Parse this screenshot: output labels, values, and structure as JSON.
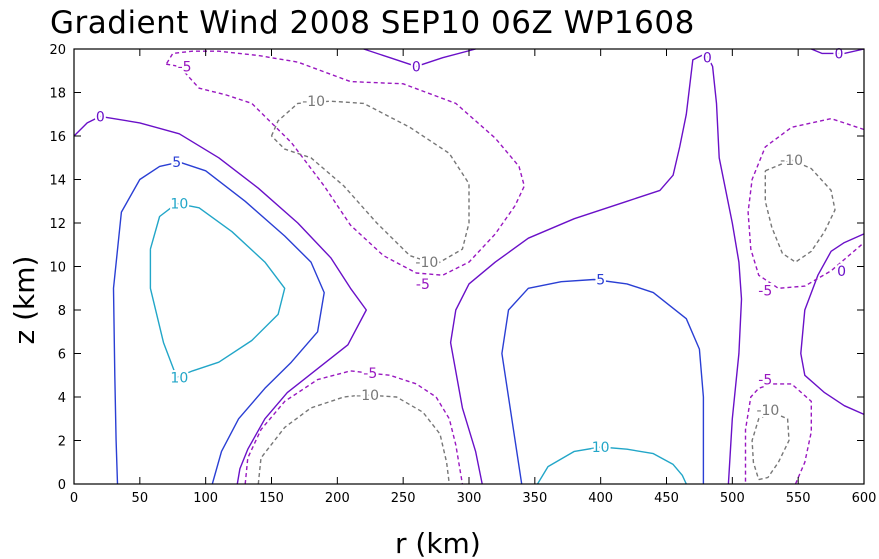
{
  "chart_data": {
    "type": "contour",
    "title": "Gradient Wind 2008 SEP10 06Z  WP1608",
    "xlabel": "r (km)",
    "ylabel": "z (km)",
    "xlim": [
      0,
      600
    ],
    "ylim": [
      0,
      20
    ],
    "xticks": [
      "0",
      "50",
      "100",
      "150",
      "200",
      "250",
      "300",
      "350",
      "400",
      "450",
      "500",
      "550",
      "600"
    ],
    "yticks": [
      "0",
      "2",
      "4",
      "6",
      "8",
      "10",
      "12",
      "14",
      "16",
      "18",
      "20"
    ],
    "colors": {
      "10": "#22a6c8",
      "5": "#2a3fd4",
      "0": "#6a10c8",
      "-5": "#9918c0",
      "-10": "#777777"
    },
    "contours": [
      {
        "level": 10,
        "label": "10",
        "dashed": false,
        "points": [
          [
            58,
            10.8
          ],
          [
            65,
            12.3
          ],
          [
            78,
            12.9
          ],
          [
            95,
            12.7
          ],
          [
            120,
            11.6
          ],
          [
            145,
            10.2
          ],
          [
            160,
            9.0
          ],
          [
            155,
            7.8
          ],
          [
            135,
            6.6
          ],
          [
            110,
            5.6
          ],
          [
            90,
            5.2
          ],
          [
            78,
            4.9
          ],
          [
            68,
            6.5
          ],
          [
            58,
            9.0
          ],
          [
            58,
            10.8
          ]
        ]
      },
      {
        "level": 5,
        "label": "5",
        "dashed": false,
        "points": [
          [
            33,
            0
          ],
          [
            32,
            2
          ],
          [
            31,
            5
          ],
          [
            30,
            9
          ],
          [
            36,
            12.5
          ],
          [
            50,
            14.0
          ],
          [
            65,
            14.6
          ],
          [
            80,
            14.8
          ],
          [
            100,
            14.4
          ],
          [
            130,
            13.0
          ],
          [
            160,
            11.4
          ],
          [
            180,
            10.2
          ],
          [
            190,
            8.8
          ],
          [
            185,
            7.0
          ],
          [
            165,
            5.6
          ],
          [
            145,
            4.4
          ],
          [
            125,
            3.0
          ],
          [
            112,
            1.5
          ],
          [
            105,
            0
          ]
        ]
      },
      {
        "level": 0,
        "label": "0",
        "dashed": false,
        "points": [
          [
            0,
            16.0
          ],
          [
            10,
            16.6
          ],
          [
            20,
            16.9
          ],
          [
            50,
            16.6
          ],
          [
            80,
            16.1
          ],
          [
            110,
            15.0
          ],
          [
            140,
            13.6
          ],
          [
            170,
            12.0
          ],
          [
            195,
            10.4
          ],
          [
            210,
            9.0
          ],
          [
            222,
            8.0
          ],
          [
            208,
            6.4
          ],
          [
            185,
            5.3
          ],
          [
            162,
            4.2
          ],
          [
            145,
            3.0
          ],
          [
            132,
            1.6
          ],
          [
            126,
            0.7
          ],
          [
            124,
            0
          ]
        ]
      },
      {
        "level": 0,
        "label": "0",
        "dashed": false,
        "points": [
          [
            310,
            0
          ],
          [
            305,
            1.5
          ],
          [
            295,
            3.5
          ],
          [
            286,
            6.5
          ],
          [
            290,
            8.0
          ],
          [
            300,
            9.2
          ],
          [
            320,
            10.2
          ],
          [
            345,
            11.3
          ],
          [
            380,
            12.2
          ],
          [
            420,
            13.0
          ],
          [
            445,
            13.5
          ],
          [
            455,
            14.2
          ],
          [
            460,
            15.5
          ],
          [
            465,
            17.0
          ],
          [
            470,
            19.5
          ],
          [
            480,
            19.8
          ],
          [
            485,
            19.2
          ],
          [
            488,
            17.5
          ],
          [
            490,
            15.0
          ],
          [
            500,
            12.0
          ],
          [
            505,
            10.2
          ],
          [
            507,
            8.5
          ],
          [
            505,
            6.0
          ],
          [
            500,
            3.0
          ],
          [
            498,
            1.0
          ],
          [
            497,
            0
          ]
        ]
      },
      {
        "level": 0,
        "label": "0",
        "dashed": false,
        "points": [
          [
            220,
            20
          ],
          [
            240,
            19.6
          ],
          [
            260,
            19.2
          ],
          [
            280,
            19.6
          ],
          [
            305,
            20
          ]
        ]
      },
      {
        "level": 0,
        "label": "0",
        "dashed": false,
        "points": [
          [
            560,
            20
          ],
          [
            568,
            19.8
          ],
          [
            585,
            19.8
          ],
          [
            600,
            20
          ]
        ]
      },
      {
        "level": 0,
        "label": "0",
        "dashed": false,
        "points": [
          [
            600,
            11.5
          ],
          [
            585,
            11.1
          ],
          [
            575,
            10.7
          ],
          [
            565,
            9.6
          ],
          [
            555,
            8.0
          ],
          [
            552,
            6.0
          ],
          [
            555,
            5.0
          ],
          [
            570,
            4.2
          ],
          [
            585,
            3.6
          ],
          [
            600,
            3.2
          ]
        ]
      },
      {
        "level": 5,
        "label": "5",
        "dashed": false,
        "points": [
          [
            340,
            0
          ],
          [
            335,
            2
          ],
          [
            330,
            4
          ],
          [
            325,
            6
          ],
          [
            330,
            8
          ],
          [
            345,
            9.0
          ],
          [
            370,
            9.3
          ],
          [
            395,
            9.4
          ],
          [
            420,
            9.2
          ],
          [
            440,
            8.8
          ],
          [
            465,
            7.6
          ],
          [
            475,
            6.2
          ],
          [
            478,
            4.0
          ],
          [
            478,
            2
          ],
          [
            478,
            0
          ]
        ]
      },
      {
        "level": 10,
        "label": "10",
        "dashed": false,
        "points": [
          [
            352,
            0
          ],
          [
            360,
            0.8
          ],
          [
            380,
            1.5
          ],
          [
            400,
            1.7
          ],
          [
            420,
            1.6
          ],
          [
            440,
            1.4
          ],
          [
            455,
            0.9
          ],
          [
            462,
            0.4
          ],
          [
            465,
            0
          ]
        ]
      },
      {
        "level": -5,
        "label": "-5",
        "dashed": true,
        "points": [
          [
            130,
            0
          ],
          [
            132,
            1.2
          ],
          [
            142,
            2.5
          ],
          [
            160,
            3.8
          ],
          [
            185,
            4.8
          ],
          [
            210,
            5.2
          ],
          [
            240,
            5.0
          ],
          [
            260,
            4.6
          ],
          [
            275,
            4.0
          ],
          [
            285,
            3.0
          ],
          [
            290,
            1.8
          ],
          [
            295,
            0
          ]
        ]
      },
      {
        "level": -10,
        "label": "-10",
        "dashed": true,
        "points": [
          [
            140,
            0
          ],
          [
            142,
            1.2
          ],
          [
            160,
            2.6
          ],
          [
            180,
            3.5
          ],
          [
            205,
            4.0
          ],
          [
            220,
            4.1
          ],
          [
            245,
            4.0
          ],
          [
            265,
            3.3
          ],
          [
            278,
            2.3
          ],
          [
            283,
            1.0
          ],
          [
            285,
            0
          ]
        ]
      },
      {
        "level": -5,
        "label": "-5",
        "dashed": true,
        "points": [
          [
            70,
            19.3
          ],
          [
            80,
            19.2
          ],
          [
            95,
            18.2
          ],
          [
            115,
            17.9
          ],
          [
            135,
            17.5
          ],
          [
            165,
            15.7
          ],
          [
            190,
            13.7
          ],
          [
            210,
            11.9
          ],
          [
            235,
            10.5
          ],
          [
            260,
            9.7
          ],
          [
            280,
            9.6
          ],
          [
            300,
            10.2
          ],
          [
            320,
            11.5
          ],
          [
            335,
            12.8
          ],
          [
            342,
            13.7
          ],
          [
            338,
            14.6
          ],
          [
            320,
            15.9
          ],
          [
            290,
            17.5
          ],
          [
            250,
            18.4
          ],
          [
            210,
            18.5
          ],
          [
            170,
            19.4
          ],
          [
            140,
            19.7
          ],
          [
            110,
            19.9
          ],
          [
            90,
            19.9
          ],
          [
            75,
            19.8
          ],
          [
            70,
            19.3
          ]
        ]
      },
      {
        "level": -10,
        "label": "-10",
        "dashed": true,
        "points": [
          [
            150,
            16.0
          ],
          [
            155,
            16.7
          ],
          [
            170,
            17.5
          ],
          [
            195,
            17.6
          ],
          [
            220,
            17.5
          ],
          [
            255,
            16.4
          ],
          [
            285,
            15.2
          ],
          [
            300,
            13.8
          ],
          [
            300,
            12.0
          ],
          [
            295,
            10.8
          ],
          [
            275,
            10.1
          ],
          [
            255,
            10.5
          ],
          [
            230,
            12.0
          ],
          [
            205,
            13.7
          ],
          [
            180,
            15.0
          ],
          [
            160,
            15.4
          ],
          [
            150,
            16.0
          ]
        ]
      },
      {
        "level": -5,
        "label": "-5",
        "dashed": true,
        "points": [
          [
            600,
            16.3
          ],
          [
            575,
            16.8
          ],
          [
            545,
            16.4
          ],
          [
            525,
            15.5
          ],
          [
            515,
            14.0
          ],
          [
            512,
            12.5
          ],
          [
            514,
            10.8
          ],
          [
            520,
            9.6
          ],
          [
            535,
            9.0
          ],
          [
            555,
            9.1
          ],
          [
            575,
            9.8
          ],
          [
            600,
            11.1
          ]
        ]
      },
      {
        "level": -10,
        "label": "-10",
        "dashed": true,
        "points": [
          [
            525,
            14.4
          ],
          [
            545,
            14.9
          ],
          [
            560,
            14.5
          ],
          [
            575,
            13.5
          ],
          [
            578,
            12.6
          ],
          [
            570,
            11.6
          ],
          [
            560,
            10.7
          ],
          [
            548,
            10.2
          ],
          [
            538,
            10.6
          ],
          [
            530,
            11.8
          ],
          [
            525,
            13.0
          ],
          [
            525,
            14.4
          ]
        ]
      },
      {
        "level": -5,
        "label": "-5",
        "dashed": true,
        "points": [
          [
            548,
            0
          ],
          [
            555,
            1.0
          ],
          [
            560,
            2.4
          ],
          [
            560,
            3.8
          ],
          [
            545,
            4.6
          ],
          [
            530,
            4.6
          ],
          [
            520,
            4.4
          ],
          [
            514,
            4.0
          ],
          [
            510,
            2.5
          ],
          [
            510,
            1.0
          ],
          [
            510,
            0
          ]
        ]
      },
      {
        "level": -10,
        "label": "-10",
        "dashed": true,
        "points": [
          [
            520,
            0.2
          ],
          [
            527,
            0.3
          ],
          [
            535,
            1.0
          ],
          [
            543,
            2.0
          ],
          [
            542,
            3.0
          ],
          [
            530,
            3.3
          ],
          [
            520,
            3.0
          ],
          [
            515,
            2.0
          ],
          [
            516,
            1.0
          ],
          [
            520,
            0.2
          ]
        ]
      }
    ],
    "labels": [
      {
        "text": "10",
        "x": 80,
        "y": 12.9,
        "level": 10
      },
      {
        "text": "10",
        "x": 80,
        "y": 4.9,
        "level": 10
      },
      {
        "text": "5",
        "x": 78,
        "y": 14.8,
        "level": 5
      },
      {
        "text": "0",
        "x": 20,
        "y": 16.9,
        "level": 0
      },
      {
        "text": "-5",
        "x": 84,
        "y": 19.2,
        "level": -5
      },
      {
        "text": "-10",
        "x": 182,
        "y": 17.6,
        "level": -10
      },
      {
        "text": "-10",
        "x": 268,
        "y": 10.2,
        "level": -10
      },
      {
        "text": "-5",
        "x": 265,
        "y": 9.2,
        "level": -5
      },
      {
        "text": "0",
        "x": 260,
        "y": 19.2,
        "level": 0
      },
      {
        "text": "-5",
        "x": 225,
        "y": 5.1,
        "level": -5
      },
      {
        "text": "-10",
        "x": 223,
        "y": 4.1,
        "level": -10
      },
      {
        "text": "5",
        "x": 400,
        "y": 9.4,
        "level": 5
      },
      {
        "text": "10",
        "x": 400,
        "y": 1.7,
        "level": 10
      },
      {
        "text": "0",
        "x": 481,
        "y": 19.6,
        "level": 0
      },
      {
        "text": "0",
        "x": 581,
        "y": 19.8,
        "level": 0
      },
      {
        "text": "-10",
        "x": 545,
        "y": 14.9,
        "level": -10
      },
      {
        "text": "-5",
        "x": 525,
        "y": 8.9,
        "level": -5
      },
      {
        "text": "0",
        "x": 583,
        "y": 9.8,
        "level": 0
      },
      {
        "text": "-5",
        "x": 525,
        "y": 4.8,
        "level": -5
      },
      {
        "text": "-10",
        "x": 527,
        "y": 3.4,
        "level": -10
      }
    ]
  }
}
